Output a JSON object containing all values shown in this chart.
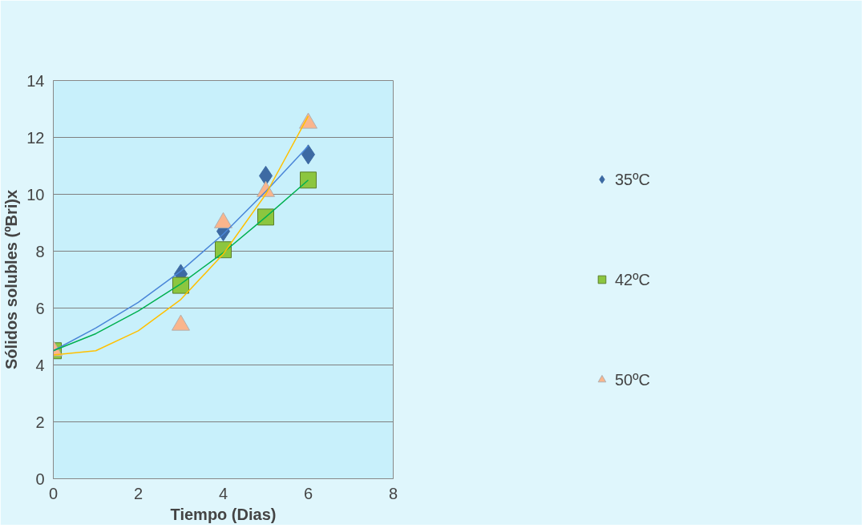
{
  "chart_data": {
    "type": "scatter",
    "xlabel": "Tiempo (Dias)",
    "ylabel": "Sólidos solubles (ºBri)x",
    "xlim": [
      0,
      8
    ],
    "ylim": [
      0,
      14
    ],
    "xticks": [
      0,
      2,
      4,
      6,
      8
    ],
    "yticks": [
      0,
      2,
      4,
      6,
      8,
      10,
      12,
      14
    ],
    "grid": "y",
    "legend": "right",
    "series": [
      {
        "name": "35ºC",
        "color": "#3d6aa3",
        "marker": "diamond",
        "x": [
          3,
          4,
          5,
          6
        ],
        "values": [
          7.2,
          8.7,
          10.65,
          11.4
        ]
      },
      {
        "name": "42ºC",
        "color": "#8cc63f",
        "marker": "square",
        "x": [
          0,
          3,
          4,
          5,
          6
        ],
        "values": [
          4.5,
          6.8,
          8.05,
          9.2,
          10.5
        ]
      },
      {
        "name": "50ºC",
        "color": "#fab58c",
        "marker": "triangle",
        "x": [
          0,
          3,
          4,
          5,
          6
        ],
        "values": [
          4.5,
          5.4,
          9.0,
          10.1,
          12.5
        ]
      },
      {
        "type": "line",
        "color": "#4a86d8",
        "x": [
          0,
          1,
          2,
          3,
          4,
          5,
          6
        ],
        "values": [
          4.5,
          5.3,
          6.2,
          7.3,
          8.6,
          10.1,
          11.7
        ]
      },
      {
        "type": "line",
        "color": "#00b050",
        "x": [
          0,
          1,
          2,
          3,
          4,
          5,
          6
        ],
        "values": [
          4.5,
          5.1,
          5.9,
          6.85,
          7.95,
          9.2,
          10.5
        ]
      },
      {
        "type": "line",
        "color": "#ffc000",
        "x": [
          0,
          1,
          2,
          3,
          4,
          5,
          6
        ],
        "values": [
          4.35,
          4.5,
          5.2,
          6.3,
          7.9,
          10.0,
          12.75
        ]
      }
    ]
  }
}
